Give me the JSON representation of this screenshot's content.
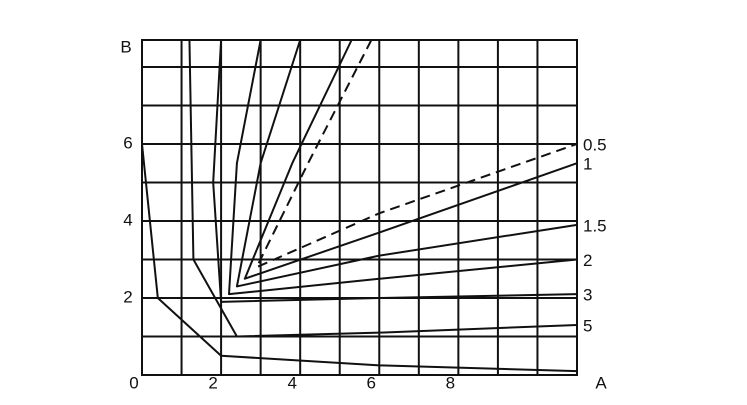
{
  "chart_data": {
    "type": "line",
    "x_label": "A",
    "y_label": "B",
    "xlim": [
      0,
      11
    ],
    "ylim": [
      0,
      8.7
    ],
    "xticks": [
      0,
      2,
      4,
      6,
      8
    ],
    "yticks": [
      2,
      4,
      6
    ],
    "x_gridlines": [
      0,
      1,
      2,
      3,
      4,
      5,
      6,
      7,
      8,
      9,
      10,
      11
    ],
    "y_gridlines": [
      0,
      1,
      2,
      3,
      4,
      5,
      6,
      7,
      8
    ],
    "line_color": "#111111",
    "series": [
      {
        "name": "0.5",
        "dashed": true,
        "x": [
          5.8,
          4.2,
          2.9,
          6,
          11
        ],
        "values": [
          8.7,
          5.5,
          2.8,
          4.2,
          6.0
        ]
      },
      {
        "name": "1",
        "x": [
          5.3,
          3.8,
          2.6,
          6,
          11
        ],
        "values": [
          8.7,
          5.5,
          2.5,
          3.7,
          5.5
        ]
      },
      {
        "name": "1.5",
        "x": [
          4.0,
          3.0,
          2.4,
          6,
          11
        ],
        "values": [
          8.7,
          5.5,
          2.3,
          3.1,
          3.9
        ]
      },
      {
        "name": "2",
        "x": [
          3.0,
          2.4,
          2.2,
          6,
          11
        ],
        "values": [
          8.7,
          5.5,
          2.1,
          2.5,
          3.0
        ]
      },
      {
        "name": "3",
        "x": [
          2.0,
          1.8,
          2.0,
          6,
          11
        ],
        "values": [
          8.7,
          5.0,
          1.9,
          2.0,
          2.1
        ]
      },
      {
        "name": "5",
        "x": [
          1.2,
          1.3,
          2.4,
          6,
          11
        ],
        "values": [
          8.7,
          3.0,
          1.0,
          1.1,
          1.3
        ]
      },
      {
        "x": [
          0,
          0.4,
          2.0,
          6,
          11
        ],
        "values": [
          6.0,
          2.0,
          0.5,
          0.25,
          0.1
        ]
      }
    ]
  }
}
